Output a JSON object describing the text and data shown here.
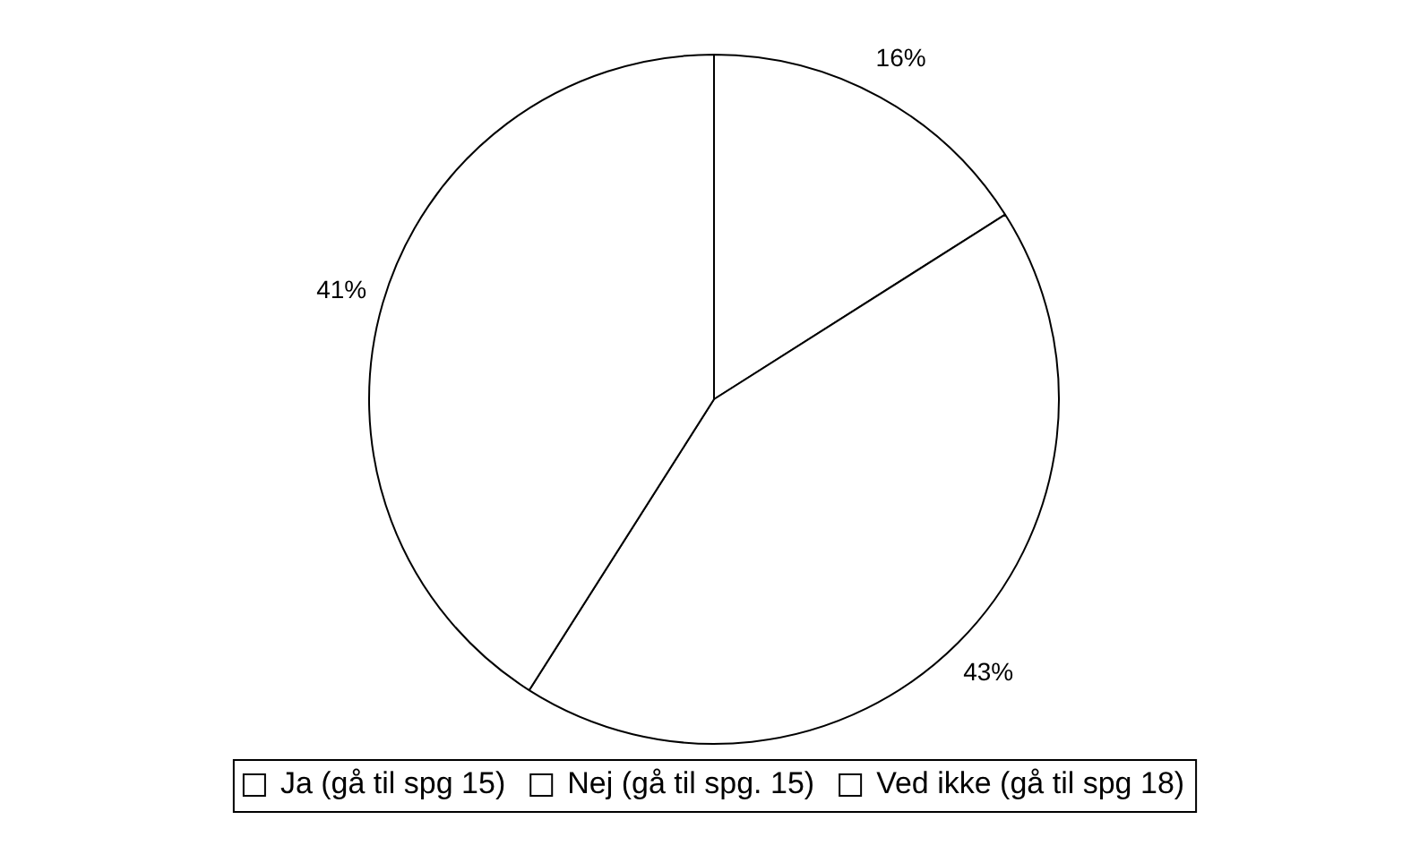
{
  "chart_data": {
    "type": "pie",
    "categories": [
      "Ja (gå til spg 15)",
      "Nej (gå til spg. 15)",
      "Ved ikke (gå til spg 18)"
    ],
    "values": [
      16,
      43,
      41
    ],
    "colors": [
      "#ffffff",
      "#ffffff",
      "#ffffff"
    ],
    "value_labels": [
      "16%",
      "43%",
      "41%"
    ],
    "legend": "bottom"
  }
}
